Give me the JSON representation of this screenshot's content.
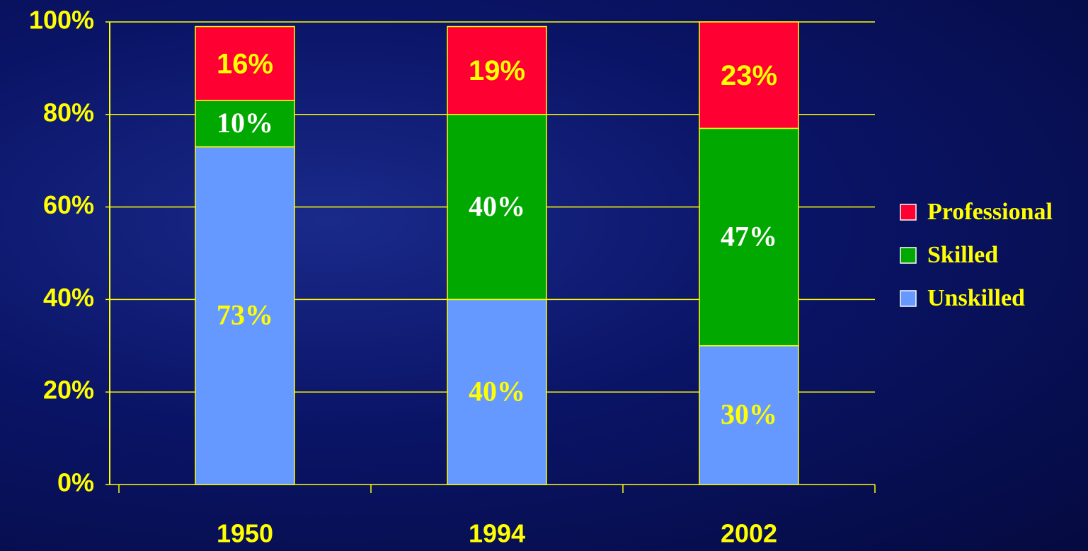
{
  "chart_data": {
    "type": "stacked_bar",
    "categories": [
      "1950",
      "1994",
      "2002"
    ],
    "series": [
      {
        "name": "Unskilled",
        "color": "#6699ff",
        "values": [
          73,
          40,
          30
        ],
        "value_labels": [
          "73%",
          "40%",
          "30%"
        ]
      },
      {
        "name": "Skilled",
        "color": "#00a800",
        "values": [
          10,
          40,
          47
        ],
        "value_labels": [
          "10%",
          "40%",
          "47%"
        ]
      },
      {
        "name": "Professional",
        "color": "#ff0033",
        "values": [
          16,
          19,
          23
        ],
        "value_labels": [
          "16%",
          "19%",
          "23%"
        ]
      }
    ],
    "ylim": [
      0,
      100
    ],
    "yticks": [
      {
        "value": 0,
        "label": "0%"
      },
      {
        "value": 20,
        "label": "20%"
      },
      {
        "value": 40,
        "label": "40%"
      },
      {
        "value": 60,
        "label": "60%"
      },
      {
        "value": 80,
        "label": "80%"
      },
      {
        "value": 100,
        "label": "100%"
      }
    ],
    "grid": true,
    "legend": "right"
  }
}
